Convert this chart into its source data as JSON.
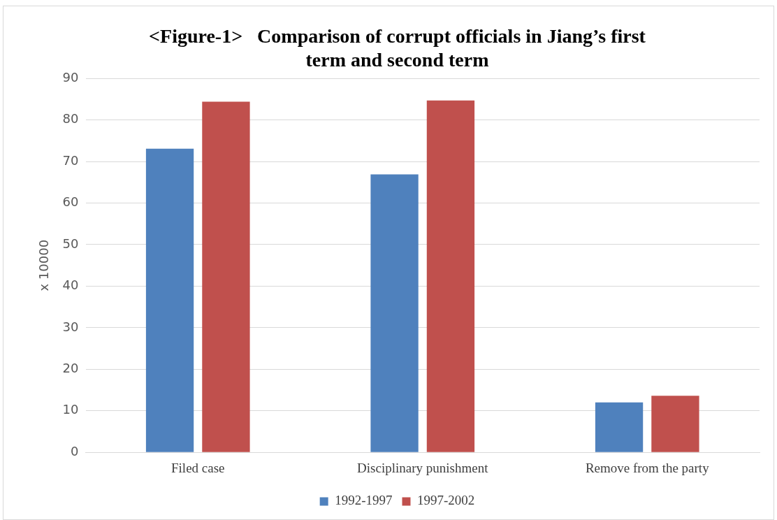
{
  "chart_data": {
    "type": "bar",
    "title": [
      "<Figure-1>   Comparison of corrupt officials in Jiang’s first",
      "term and second term"
    ],
    "ylabel": "x 10000",
    "categories": [
      "Filed case",
      "Disciplinary punishment",
      "Remove from the party"
    ],
    "series": [
      {
        "name": "1992-1997",
        "color": "#4f81bd",
        "values": [
          73.1,
          66.9,
          12.0
        ]
      },
      {
        "name": "1997-2002",
        "color": "#c0504d",
        "values": [
          84.4,
          84.7,
          13.6
        ]
      }
    ],
    "ylim": [
      0,
      90
    ],
    "yticks": [
      0,
      10,
      20,
      30,
      40,
      50,
      60,
      70,
      80,
      90
    ],
    "grid": "y",
    "legend": "bottom"
  }
}
